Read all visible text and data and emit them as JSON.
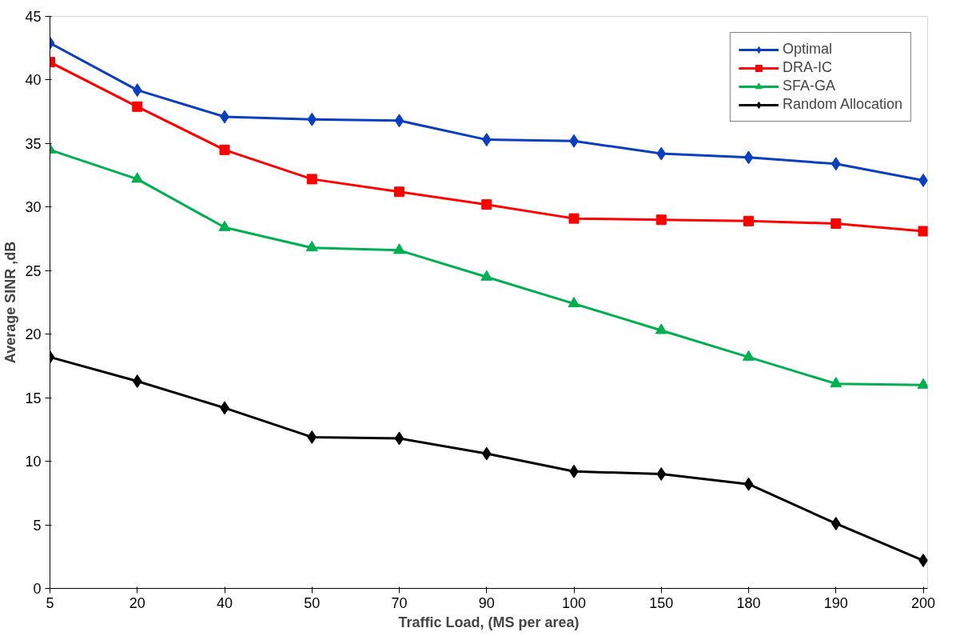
{
  "chart_data": {
    "type": "line",
    "xlabel": "Traffic Load, (MS per area)",
    "ylabel": "Average SINR ,dB",
    "categories": [
      "5",
      "20",
      "40",
      "50",
      "70",
      "90",
      "100",
      "150",
      "180",
      "190",
      "200"
    ],
    "ylim": [
      0,
      45
    ],
    "yticks": [
      0,
      5,
      10,
      15,
      20,
      25,
      30,
      35,
      40,
      45
    ],
    "grid": false,
    "legend": "top right",
    "line_style": "solid",
    "series": [
      {
        "name": "Optimal",
        "color": "#0a3fbf",
        "marker": "diamond",
        "values": [
          42.9,
          39.2,
          37.1,
          36.9,
          36.8,
          35.3,
          35.2,
          34.2,
          33.9,
          33.4,
          32.1
        ]
      },
      {
        "name": "DRA-IC",
        "color": "#ff0000",
        "marker": "square",
        "values": [
          41.4,
          37.9,
          34.5,
          32.2,
          31.2,
          30.2,
          29.1,
          29.0,
          28.9,
          28.7,
          28.1
        ]
      },
      {
        "name": "SFA-GA",
        "color": "#00b050",
        "marker": "triangle",
        "values": [
          34.5,
          32.2,
          28.4,
          26.8,
          26.6,
          24.5,
          22.4,
          20.3,
          18.2,
          16.1,
          16.0
        ]
      },
      {
        "name": "Random Allocation",
        "color": "#000000",
        "marker": "diamond",
        "values": [
          18.2,
          16.3,
          14.2,
          11.9,
          11.8,
          10.6,
          9.2,
          9.0,
          8.2,
          5.1,
          2.2
        ]
      }
    ]
  }
}
